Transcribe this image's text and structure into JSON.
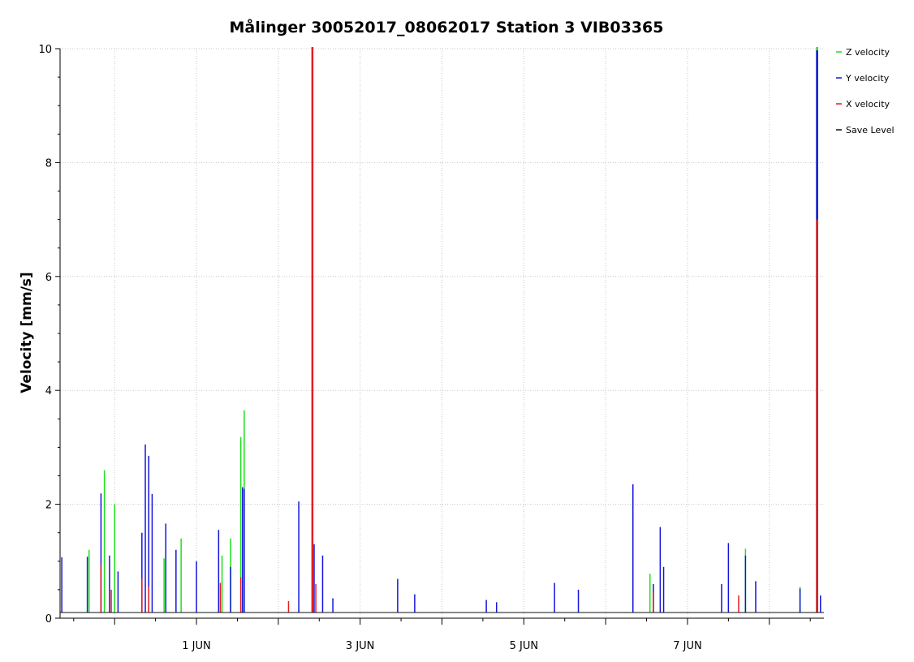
{
  "chart_data": {
    "type": "line",
    "title": "Målinger 30052017_08062017 Station 3 VIB03365",
    "xlabel": "",
    "ylabel": "Velocity [mm/s]",
    "ylim": [
      0,
      10
    ],
    "yticks": [
      0,
      2,
      4,
      6,
      8,
      10
    ],
    "xlim": [
      "2017-05-30T08:00",
      "2017-06-08T16:00"
    ],
    "xticks": [
      {
        "label": "1 JUN",
        "date": "2017-06-01"
      },
      {
        "label": "3 JUN",
        "date": "2017-06-03"
      },
      {
        "label": "5 JUN",
        "date": "2017-06-05"
      },
      {
        "label": "7 JUN",
        "date": "2017-06-07"
      }
    ],
    "minor_xticks": [
      "2017-05-31",
      "2017-06-02",
      "2017-06-04",
      "2017-06-06",
      "2017-06-08"
    ],
    "grid": true,
    "legend_position": "top-right",
    "series": [
      {
        "name": "Z velocity",
        "color": "#1ee01e",
        "points": [
          [
            "2017-05-30T16:30",
            1.2
          ],
          [
            "2017-05-30T21:00",
            2.6
          ],
          [
            "2017-05-31T00:00",
            2.0
          ],
          [
            "2017-05-31T14:30",
            1.05
          ],
          [
            "2017-05-31T19:30",
            1.4
          ],
          [
            "2017-06-01T07:30",
            1.1
          ],
          [
            "2017-06-01T10:00",
            1.4
          ],
          [
            "2017-06-01T13:00",
            3.18
          ],
          [
            "2017-06-01T14:00",
            3.65
          ],
          [
            "2017-06-02T10:00",
            1.28
          ],
          [
            "2017-06-06T13:00",
            0.78
          ],
          [
            "2017-06-07T17:00",
            1.22
          ],
          [
            "2017-06-08T09:00",
            0.55
          ],
          [
            "2017-06-08T14:00",
            10.2
          ]
        ]
      },
      {
        "name": "Y velocity",
        "color": "#1414dc",
        "points": [
          [
            "2017-05-30T08:30",
            1.07
          ],
          [
            "2017-05-30T16:00",
            1.08
          ],
          [
            "2017-05-30T20:00",
            2.19
          ],
          [
            "2017-05-30T22:30",
            1.1
          ],
          [
            "2017-05-31T01:00",
            0.82
          ],
          [
            "2017-05-31T08:00",
            1.5
          ],
          [
            "2017-05-31T09:00",
            3.05
          ],
          [
            "2017-05-31T10:00",
            2.85
          ],
          [
            "2017-05-31T11:00",
            2.18
          ],
          [
            "2017-05-31T15:00",
            1.66
          ],
          [
            "2017-05-31T18:00",
            1.2
          ],
          [
            "2017-06-01T00:00",
            1.0
          ],
          [
            "2017-06-01T06:30",
            1.55
          ],
          [
            "2017-06-01T10:00",
            0.9
          ],
          [
            "2017-06-01T13:30",
            2.3
          ],
          [
            "2017-06-01T14:00",
            2.27
          ],
          [
            "2017-06-02T06:00",
            2.05
          ],
          [
            "2017-06-02T10:30",
            1.3
          ],
          [
            "2017-06-02T13:00",
            1.1
          ],
          [
            "2017-06-02T16:00",
            0.35
          ],
          [
            "2017-06-03T11:00",
            0.69
          ],
          [
            "2017-06-03T16:00",
            0.42
          ],
          [
            "2017-06-04T13:00",
            0.32
          ],
          [
            "2017-06-04T16:00",
            0.28
          ],
          [
            "2017-06-05T09:00",
            0.62
          ],
          [
            "2017-06-05T16:00",
            0.5
          ],
          [
            "2017-06-06T08:00",
            2.35
          ],
          [
            "2017-06-06T14:00",
            0.6
          ],
          [
            "2017-06-06T16:00",
            1.6
          ],
          [
            "2017-06-06T17:00",
            0.9
          ],
          [
            "2017-06-07T10:00",
            0.6
          ],
          [
            "2017-06-07T12:00",
            1.32
          ],
          [
            "2017-06-07T17:00",
            1.1
          ],
          [
            "2017-06-07T20:00",
            0.65
          ],
          [
            "2017-06-08T09:00",
            0.52
          ],
          [
            "2017-06-08T14:00",
            9.97
          ],
          [
            "2017-06-08T15:00",
            0.4
          ]
        ]
      },
      {
        "name": "X velocity",
        "color": "#e61e1e",
        "points": [
          [
            "2017-05-30T20:00",
            0.95
          ],
          [
            "2017-05-30T23:00",
            0.5
          ],
          [
            "2017-05-31T08:00",
            0.7
          ],
          [
            "2017-05-31T10:00",
            0.55
          ],
          [
            "2017-06-01T07:00",
            0.62
          ],
          [
            "2017-06-01T13:00",
            0.72
          ],
          [
            "2017-06-02T03:00",
            0.3
          ],
          [
            "2017-06-02T10:00",
            10.2
          ],
          [
            "2017-06-02T11:00",
            0.6
          ],
          [
            "2017-06-06T14:00",
            0.45
          ],
          [
            "2017-06-07T15:00",
            0.4
          ],
          [
            "2017-06-08T14:00",
            7.0
          ]
        ]
      },
      {
        "name": "Save Level",
        "color": "#111111",
        "points": [
          [
            "2017-05-30T08:00",
            0.1
          ],
          [
            "2017-06-08T16:00",
            0.1
          ]
        ]
      }
    ]
  }
}
